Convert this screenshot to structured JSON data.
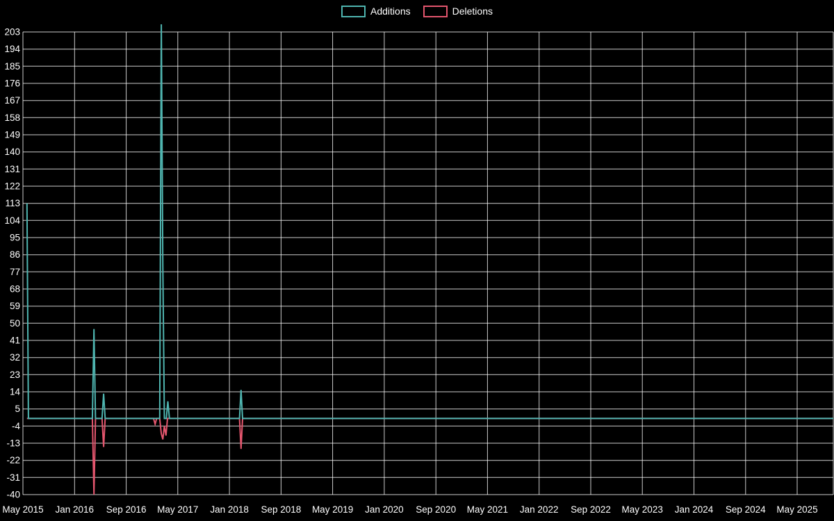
{
  "page": {
    "background_color": "#000000"
  },
  "legend": {
    "items": [
      {
        "label": "Additions",
        "color": "#4fb5b0"
      },
      {
        "label": "Deletions",
        "color": "#e4566e"
      }
    ]
  },
  "chart_data": {
    "type": "line",
    "title": "",
    "xlabel": "",
    "ylabel": "",
    "legend_position": "top-center",
    "grid": true,
    "grid_color": "rgba(255,255,255,0.8)",
    "text_color": "#ffffff",
    "background_color": "#000000",
    "xlim": [
      2015.333,
      2025.8
    ],
    "ylim": [
      -40,
      203
    ],
    "y_ticks": [
      203,
      194,
      185,
      176,
      167,
      158,
      149,
      140,
      131,
      122,
      113,
      104,
      95,
      86,
      77,
      68,
      59,
      50,
      41,
      32,
      23,
      14,
      5,
      -4,
      -13,
      -22,
      -31,
      -40
    ],
    "x_ticks": [
      {
        "label": "May 2015",
        "x": 2015.333
      },
      {
        "label": "Jan 2016",
        "x": 2016.0
      },
      {
        "label": "Sep 2016",
        "x": 2016.667
      },
      {
        "label": "May 2017",
        "x": 2017.333
      },
      {
        "label": "Jan 2018",
        "x": 2018.0
      },
      {
        "label": "Sep 2018",
        "x": 2018.667
      },
      {
        "label": "May 2019",
        "x": 2019.333
      },
      {
        "label": "Jan 2020",
        "x": 2020.0
      },
      {
        "label": "Sep 2020",
        "x": 2020.667
      },
      {
        "label": "May 2021",
        "x": 2021.333
      },
      {
        "label": "Jan 2022",
        "x": 2022.0
      },
      {
        "label": "Sep 2022",
        "x": 2022.667
      },
      {
        "label": "May 2023",
        "x": 2023.333
      },
      {
        "label": "Jan 2024",
        "x": 2024.0
      },
      {
        "label": "Sep 2024",
        "x": 2024.667
      },
      {
        "label": "May 2025",
        "x": 2025.333
      }
    ],
    "series": [
      {
        "name": "Deletions",
        "color": "#e4566e",
        "points": [
          [
            2015.385,
            0
          ],
          [
            2016.23,
            0
          ],
          [
            2016.25,
            -40
          ],
          [
            2016.27,
            0
          ],
          [
            2016.355,
            0
          ],
          [
            2016.375,
            -15
          ],
          [
            2016.395,
            0
          ],
          [
            2017.02,
            0
          ],
          [
            2017.04,
            -3
          ],
          [
            2017.06,
            0
          ],
          [
            2017.1,
            0
          ],
          [
            2017.12,
            -8
          ],
          [
            2017.14,
            -11
          ],
          [
            2017.16,
            -4
          ],
          [
            2017.18,
            -9
          ],
          [
            2017.2,
            0
          ],
          [
            2018.13,
            0
          ],
          [
            2018.15,
            -16
          ],
          [
            2018.17,
            0
          ],
          [
            2025.8,
            0
          ]
        ]
      },
      {
        "name": "Additions",
        "color": "#4fb5b0",
        "points": [
          [
            2015.385,
            113
          ],
          [
            2015.404,
            0
          ],
          [
            2016.23,
            0
          ],
          [
            2016.25,
            47
          ],
          [
            2016.27,
            0
          ],
          [
            2016.355,
            0
          ],
          [
            2016.375,
            13
          ],
          [
            2016.395,
            0
          ],
          [
            2017.1,
            0
          ],
          [
            2017.12,
            207
          ],
          [
            2017.14,
            80
          ],
          [
            2017.16,
            0
          ],
          [
            2017.185,
            0
          ],
          [
            2017.205,
            9
          ],
          [
            2017.225,
            0
          ],
          [
            2018.13,
            0
          ],
          [
            2018.15,
            15
          ],
          [
            2018.17,
            0
          ],
          [
            2025.8,
            0
          ]
        ]
      }
    ]
  }
}
